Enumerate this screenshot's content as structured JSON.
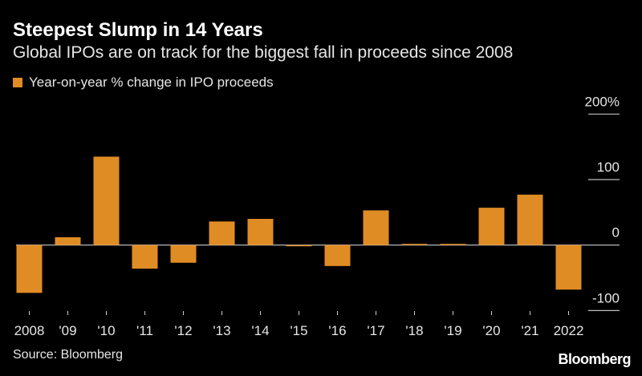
{
  "title": "Steepest Slump in 14 Years",
  "subtitle": "Global IPOs are on track for the biggest fall in proceeds since 2008",
  "source": "Source: Bloomberg",
  "logo": "Bloomberg",
  "colors": {
    "bar": "#e08c24",
    "background": "#000000",
    "text": "#ffffff"
  },
  "chart_data": {
    "type": "bar",
    "title": "Steepest Slump in 14 Years",
    "subtitle": "Global IPOs are on track for the biggest fall in proceeds since 2008",
    "legend": {
      "position": "top-left",
      "entries": [
        "Year-on-year % change in IPO proceeds"
      ]
    },
    "categories": [
      "2008",
      "'09",
      "'10",
      "'11",
      "'12",
      "'13",
      "'14",
      "'15",
      "'16",
      "'17",
      "'18",
      "'19",
      "'20",
      "'21",
      "2022"
    ],
    "series": [
      {
        "name": "Year-on-year % change in IPO proceeds",
        "values": [
          -73,
          12,
          135,
          -36,
          -27,
          36,
          40,
          -1,
          -32,
          53,
          1,
          1,
          57,
          77,
          -68
        ]
      }
    ],
    "y_ticks": [
      {
        "value": 200,
        "label": "200%"
      },
      {
        "value": 100,
        "label": "100"
      },
      {
        "value": 0,
        "label": "0"
      },
      {
        "value": -100,
        "label": "-100"
      }
    ],
    "ylim": [
      -100,
      200
    ],
    "y_axis_position": "right",
    "grid": false
  }
}
